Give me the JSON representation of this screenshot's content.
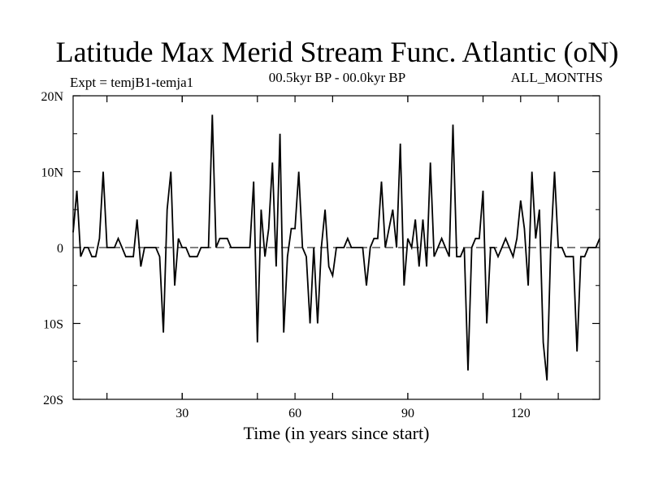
{
  "chart_data": {
    "type": "line",
    "title": "Latitude Max Merid Stream Func. Atlantic (oN)",
    "subtitle_left": "Expt = temjB1-temja1",
    "subtitle_center": "00.5kyr BP - 00.0kyr BP",
    "subtitle_right": "ALL_MONTHS",
    "xlabel": "Time (in years since start)",
    "ylabel": "",
    "xlim": [
      1,
      141
    ],
    "ylim": [
      -20,
      20
    ],
    "x_ticks": [
      30,
      60,
      90,
      120
    ],
    "x_tick_labels": [
      "30",
      "60",
      "90",
      "120"
    ],
    "y_ticks": [
      20,
      10,
      0,
      -10,
      -20
    ],
    "y_tick_labels": [
      "20N",
      "10N",
      "0",
      "10S",
      "20S"
    ],
    "zero_line": true,
    "grid": false,
    "series": [
      {
        "color": "#000000",
        "x": [
          1,
          2,
          3,
          4,
          5,
          6,
          7,
          8,
          9,
          10,
          11,
          12,
          13,
          14,
          15,
          16,
          17,
          18,
          19,
          20,
          21,
          22,
          23,
          24,
          25,
          26,
          27,
          28,
          29,
          30,
          31,
          32,
          33,
          34,
          35,
          36,
          37,
          38,
          39,
          40,
          41,
          42,
          43,
          44,
          45,
          46,
          47,
          48,
          49,
          50,
          51,
          52,
          53,
          54,
          55,
          56,
          57,
          58,
          59,
          60,
          61,
          62,
          63,
          64,
          65,
          66,
          67,
          68,
          69,
          70,
          71,
          72,
          73,
          74,
          75,
          76,
          77,
          78,
          79,
          80,
          81,
          82,
          83,
          84,
          85,
          86,
          87,
          88,
          89,
          90,
          91,
          92,
          93,
          94,
          95,
          96,
          97,
          98,
          99,
          100,
          101,
          102,
          103,
          104,
          105,
          106,
          107,
          108,
          109,
          110,
          111,
          112,
          113,
          114,
          115,
          116,
          117,
          118,
          119,
          120,
          121,
          122,
          123,
          124,
          125,
          126,
          127,
          128,
          129,
          130,
          131,
          132,
          133,
          134,
          135,
          136,
          137,
          138,
          139,
          140,
          141
        ],
        "values": [
          2,
          7.5,
          -1.2,
          0,
          0,
          -1.2,
          -1.2,
          1.2,
          10,
          0,
          0,
          0,
          1.2,
          0,
          -1.2,
          -1.2,
          -1.2,
          3.7,
          -2.5,
          0,
          0,
          0,
          0,
          -1.2,
          -11.2,
          5,
          10,
          -5,
          1.2,
          0,
          0,
          -1.2,
          -1.2,
          -1.2,
          0,
          0,
          0,
          17.5,
          0,
          1.2,
          1.2,
          1.2,
          0,
          0,
          0,
          0,
          0,
          0,
          8.7,
          -12.5,
          5,
          -1.2,
          2.5,
          11.2,
          -2.5,
          15,
          -11.2,
          -1.2,
          2.5,
          2.5,
          10,
          0,
          -1.2,
          -10,
          0,
          -10,
          0,
          5,
          -2.5,
          -3.7,
          0,
          0,
          0,
          1.2,
          0,
          0,
          0,
          0,
          -5,
          0,
          1.2,
          1.2,
          8.7,
          0,
          2.5,
          5,
          0,
          13.7,
          -5,
          1.2,
          0,
          3.7,
          -2.5,
          3.7,
          -2.5,
          11.2,
          -1.2,
          0,
          1.2,
          0,
          -1.2,
          16.2,
          -1.2,
          -1.2,
          0,
          -16.2,
          0,
          1.2,
          1.2,
          7.5,
          -10,
          0,
          0,
          -1.2,
          0,
          1.2,
          0,
          -1.2,
          1.2,
          6.2,
          2.5,
          -5,
          10,
          1.2,
          5,
          -12.5,
          -17.5,
          0,
          10,
          0,
          0,
          -1.2,
          -1.2,
          -1.2,
          -13.7,
          -1.2,
          -1.2,
          0,
          0,
          0,
          1.2
        ]
      }
    ]
  }
}
